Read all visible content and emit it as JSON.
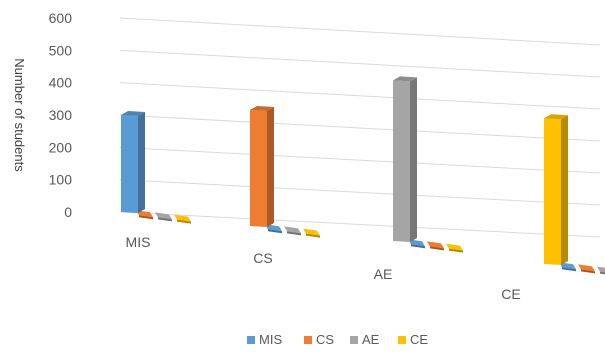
{
  "chart_data": {
    "type": "bar",
    "categories": [
      "MIS",
      "CS",
      "AE",
      "CE"
    ],
    "series": [
      {
        "name": "MIS",
        "color": "#5B9BD5",
        "values": [
          300,
          10,
          10,
          10
        ]
      },
      {
        "name": "CS",
        "color": "#ED7D31",
        "values": [
          10,
          360,
          10,
          10
        ]
      },
      {
        "name": "AE",
        "color": "#A5A5A5",
        "values": [
          10,
          10,
          500,
          10
        ]
      },
      {
        "name": "CE",
        "color": "#FFC000",
        "values": [
          10,
          10,
          10,
          455
        ]
      }
    ],
    "title": "",
    "xlabel": "",
    "ylabel": "Number of students",
    "ylim": [
      0,
      600
    ],
    "yticks": [
      "0",
      "100",
      "200",
      "300",
      "400",
      "500",
      "600"
    ],
    "grid": true,
    "legend_position": "bottom",
    "style": "3d-clustered-column"
  }
}
